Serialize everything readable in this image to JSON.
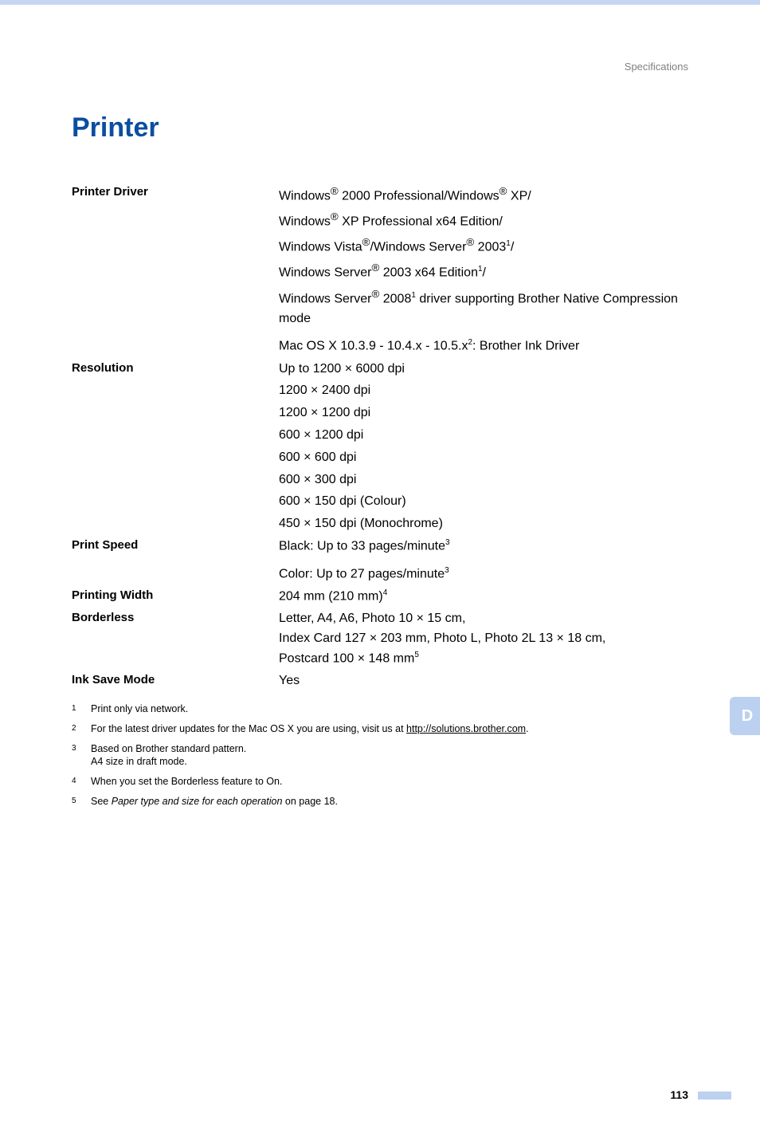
{
  "header": {
    "section": "Specifications"
  },
  "title": "Printer",
  "side_tab": {
    "label": "D",
    "bg": "#bcd1f0",
    "text_color": "#ffffff"
  },
  "page_number": "113",
  "specs": {
    "printer_driver": {
      "label": "Printer Driver",
      "line1_a": "Windows",
      "line1_b": " 2000 Professional/Windows",
      "line1_c": " XP/",
      "line2_a": "Windows",
      "line2_b": " XP Professional x64 Edition/",
      "line3_a": "Windows Vista",
      "line3_b": "/Windows Server",
      "line3_c": " 2003",
      "line3_d": "/",
      "line4_a": "Windows Server",
      "line4_b": " 2003 x64 Edition",
      "line4_c": "/",
      "line5_a": "Windows Server",
      "line5_b": " 2008",
      "line5_c": " driver supporting Brother Native Compression mode",
      "mac_a": "Mac OS X 10.3.9 - 10.4.x - 10.5.x",
      "mac_b": ": Brother Ink Driver"
    },
    "resolution": {
      "label": "Resolution",
      "l1a": "Up to 1200 ",
      "l1b": " 6000 dpi",
      "l2a": "1200 ",
      "l2b": " 2400 dpi",
      "l3a": "1200 ",
      "l3b": " 1200 dpi",
      "l4a": "600 ",
      "l4b": " 1200 dpi",
      "l5a": "600 ",
      "l5b": " 600 dpi",
      "l6a": "600 ",
      "l6b": " 300 dpi",
      "l7a": "600 ",
      "l7b": " 150 dpi (Colour)",
      "l8a": "450 ",
      "l8b": " 150 dpi (Monochrome)"
    },
    "print_speed": {
      "label": "Print Speed",
      "black": "Black: Up to 33 pages/minute",
      "color": "Color: Up to 27 pages/minute"
    },
    "printing_width": {
      "label": "Printing Width",
      "value": "204 mm (210 mm)"
    },
    "borderless": {
      "label": "Borderless",
      "l1a": "Letter, A4, A6, Photo 10 ",
      "l1b": " 15 cm,",
      "l2a": "Index Card 127 ",
      "l2b": " 203 mm, Photo L, Photo 2L 13 ",
      "l2c": " 18 cm,",
      "l3a": "Postcard 100 ",
      "l3b": " 148 mm"
    },
    "ink_save": {
      "label": "Ink Save Mode",
      "value": "Yes"
    }
  },
  "symbols": {
    "reg": "®",
    "times": "×"
  },
  "refs": {
    "r1": "1",
    "r2": "2",
    "r3": "3",
    "r4": "4",
    "r5": "5"
  },
  "footnotes": {
    "f1": {
      "num": "1",
      "text": "Print only via network."
    },
    "f2": {
      "num": "2",
      "text_a": "For the latest driver updates for the Mac OS X you are using, visit us at ",
      "link": "http://solutions.brother.com",
      "text_b": "."
    },
    "f3": {
      "num": "3",
      "text_a": "Based on Brother standard pattern.",
      "text_b": "A4 size in draft mode."
    },
    "f4": {
      "num": "4",
      "text": "When you set the Borderless feature to On."
    },
    "f5": {
      "num": "5",
      "text_a": "See ",
      "ital": "Paper type and size for each operation",
      "text_b": " on page 18."
    }
  }
}
